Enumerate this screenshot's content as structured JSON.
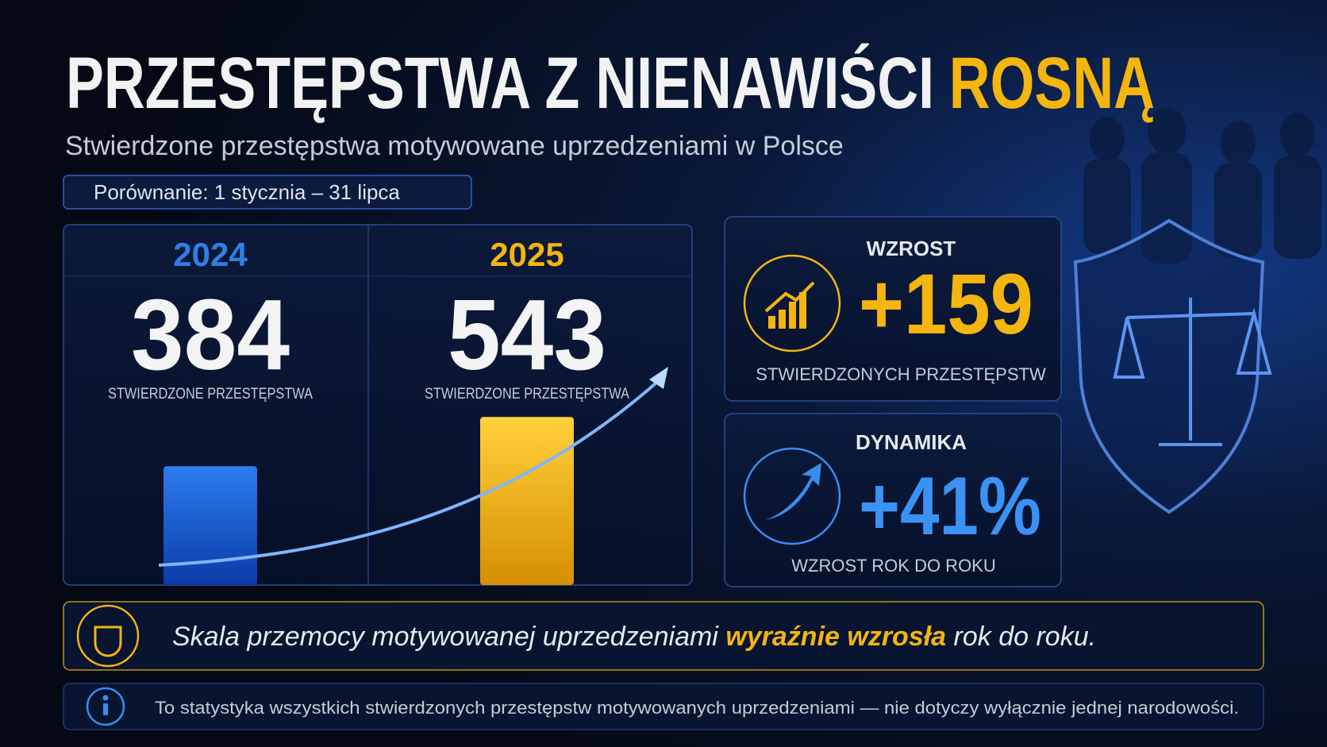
{
  "header": {
    "title": "PRZESTĘPSTWA Z NIENAWIŚCI",
    "title_highlight": "ROSNĄ",
    "subtitle": "Stwierdzone przestępstwa motywowane uprzedzeniami w Polsce",
    "period": "Porównanie: 1 stycznia – 31 lipca"
  },
  "comparison": [
    {
      "year": "2024",
      "value": 384,
      "label": "STWIERDZONE PRZESTĘPSTWA"
    },
    {
      "year": "2025",
      "value": 543,
      "label": "STWIERDZONE PRZESTĘPSTWA"
    }
  ],
  "increase": {
    "title": "WZROST",
    "value": "+159",
    "label": "STWIERDZONYCH PRZESTĘPSTW"
  },
  "dynamics": {
    "title": "DYNAMIKA",
    "value": "+41%",
    "label": "WZROST ROK DO ROKU"
  },
  "statement": {
    "before": "Skala przemocy motywowanej uprzedzeniami ",
    "highlight": "wyraźnie wzrosła",
    "after": " rok do roku."
  },
  "note": "To statystyka wszystkich stwierdzonych przestępstw motywowanych uprzedzeniami — nie dotyczy wyłącznie jednej narodowości."
}
